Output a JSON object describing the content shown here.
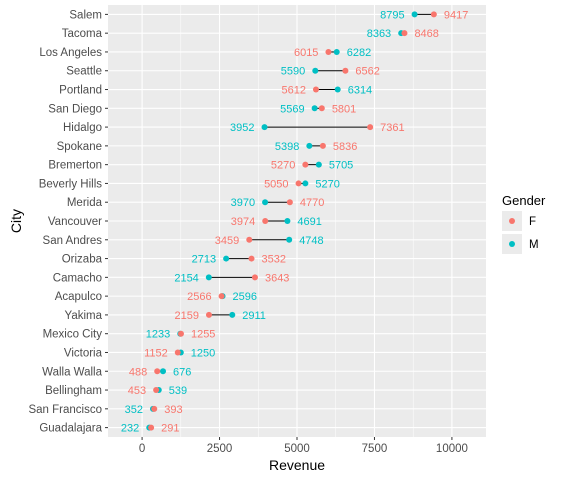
{
  "chart_data": {
    "type": "dumbbell",
    "title": "",
    "xlabel": "Revenue",
    "ylabel": "City",
    "xlim": [
      -1100,
      11100
    ],
    "xticks": [
      0,
      2500,
      5000,
      7500,
      10000
    ],
    "grid": true,
    "legend": {
      "title": "Gender",
      "position": "right",
      "entries": [
        {
          "key": "F",
          "label": "F",
          "color": "#F8766D"
        },
        {
          "key": "M",
          "label": "M",
          "color": "#00BFC4"
        }
      ]
    },
    "colors": {
      "F": "#F8766D",
      "M": "#00BFC4",
      "panel": "#EBEBEB",
      "grid": "#FFFFFF",
      "segment": "#000000"
    },
    "categories": [
      "Salem",
      "Tacoma",
      "Los Angeles",
      "Seattle",
      "Portland",
      "San Diego",
      "Hidalgo",
      "Spokane",
      "Bremerton",
      "Beverly Hills",
      "Merida",
      "Vancouver",
      "San Andres",
      "Orizaba",
      "Camacho",
      "Acapulco",
      "Yakima",
      "Mexico City",
      "Victoria",
      "Walla Walla",
      "Bellingham",
      "San Francisco",
      "Guadalajara"
    ],
    "series": [
      {
        "name": "F",
        "values": [
          9417,
          8468,
          6015,
          6562,
          5612,
          5801,
          7361,
          5836,
          5270,
          5050,
          4770,
          3974,
          3459,
          3532,
          3643,
          2566,
          2159,
          1255,
          1152,
          488,
          453,
          393,
          291
        ]
      },
      {
        "name": "M",
        "values": [
          8795,
          8363,
          6282,
          5590,
          6314,
          5569,
          3952,
          5398,
          5705,
          5270,
          3970,
          4691,
          4748,
          2713,
          2154,
          2596,
          2911,
          1233,
          1250,
          676,
          539,
          352,
          232
        ]
      }
    ]
  }
}
